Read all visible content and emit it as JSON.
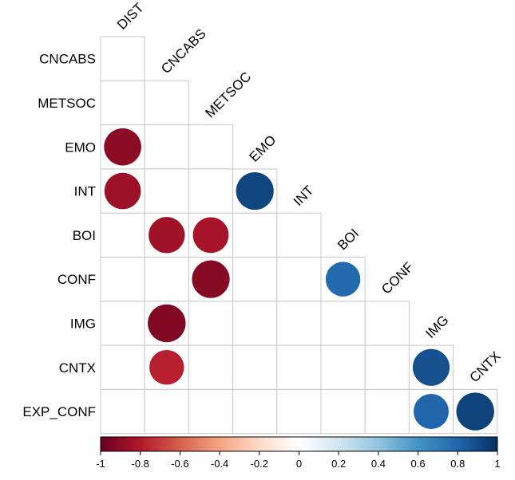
{
  "chart_data": {
    "type": "heatmap",
    "variables": [
      "DIST",
      "CNCABS",
      "METSOC",
      "EMO",
      "INT",
      "BOI",
      "CONF",
      "IMG",
      "CNTX",
      "EXP_CONF"
    ],
    "row_labels": [
      "CNCABS",
      "METSOC",
      "EMO",
      "INT",
      "BOI",
      "CONF",
      "IMG",
      "CNTX",
      "EXP_CONF"
    ],
    "column_labels": [
      "DIST",
      "CNCABS",
      "METSOC",
      "EMO",
      "INT",
      "BOI",
      "CONF",
      "IMG",
      "CNTX"
    ],
    "layout": "lower-triangle",
    "marker": "circle",
    "values": [
      {
        "row": "EMO",
        "column": "DIST",
        "value": -0.9
      },
      {
        "row": "INT",
        "column": "DIST",
        "value": -0.86
      },
      {
        "row": "INT",
        "column": "EMO",
        "value": 0.92
      },
      {
        "row": "BOI",
        "column": "CNCABS",
        "value": -0.85
      },
      {
        "row": "BOI",
        "column": "METSOC",
        "value": -0.83
      },
      {
        "row": "CONF",
        "column": "METSOC",
        "value": -0.92
      },
      {
        "row": "CONF",
        "column": "BOI",
        "value": 0.78
      },
      {
        "row": "IMG",
        "column": "CNCABS",
        "value": -0.93
      },
      {
        "row": "CNTX",
        "column": "CNCABS",
        "value": -0.78
      },
      {
        "row": "CNTX",
        "column": "IMG",
        "value": 0.88
      },
      {
        "row": "EXP_CONF",
        "column": "IMG",
        "value": 0.8
      },
      {
        "row": "EXP_CONF",
        "column": "CNTX",
        "value": 0.93
      }
    ],
    "colorbar": {
      "range": [
        -1,
        1
      ],
      "ticks": [
        "-1",
        "-0.8",
        "-0.6",
        "-0.4",
        "-0.2",
        "0",
        "0.2",
        "0.4",
        "0.6",
        "0.8",
        "1"
      ],
      "colors": [
        "#67001f",
        "#b2182b",
        "#d6604d",
        "#f4a582",
        "#fddbc7",
        "#ffffff",
        "#d1e5f0",
        "#92c5de",
        "#4393c3",
        "#2166ac",
        "#053061"
      ],
      "placement": "bottom"
    },
    "title": "",
    "xlabel": "",
    "ylabel": ""
  }
}
